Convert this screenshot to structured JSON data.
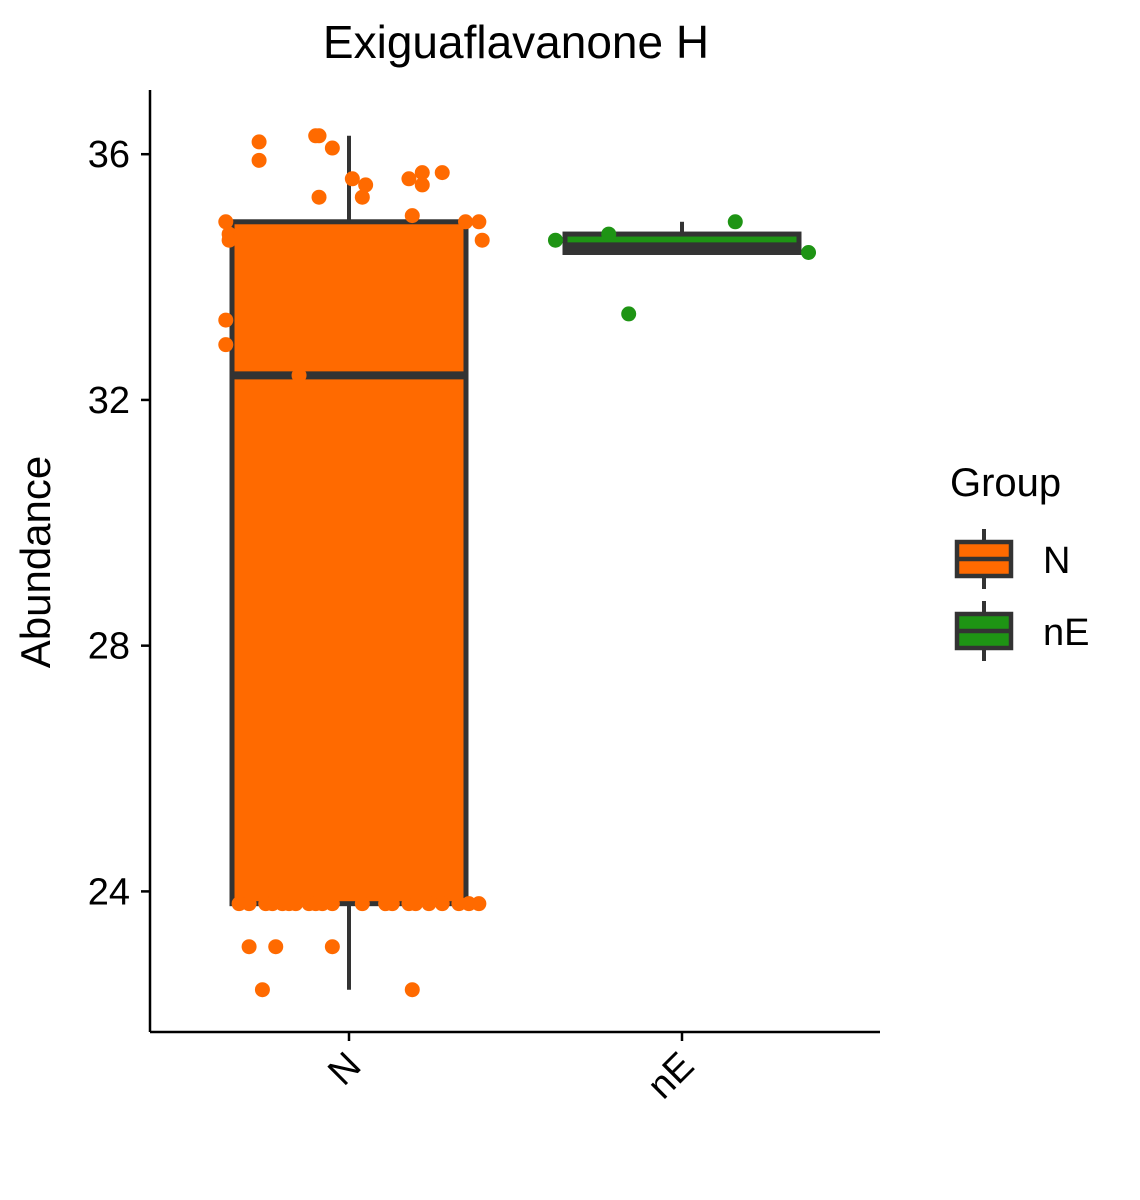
{
  "chart_data": {
    "type": "boxplot",
    "title": "Exiguaflavanone H",
    "xlabel": "",
    "ylabel": "Abundance",
    "ylim": [
      21.8,
      37.0
    ],
    "yticks": [
      24,
      28,
      32,
      36
    ],
    "grid": false,
    "legend": {
      "title": "Group",
      "placement": "right",
      "entries": [
        "N",
        "nE"
      ]
    },
    "categories": [
      "N",
      "nE"
    ],
    "colors": {
      "N": "#FF6A00",
      "nE": "#1E9414",
      "box_line": "#333333",
      "axis": "#000000"
    },
    "boxes": [
      {
        "category": "N",
        "whisker_low": 22.4,
        "q1": 23.8,
        "median": 32.4,
        "q3": 34.9,
        "whisker_high": 36.3
      },
      {
        "category": "nE",
        "whisker_low": 34.4,
        "q1": 34.4,
        "median": 34.5,
        "q3": 34.7,
        "whisker_high": 34.9
      }
    ],
    "points": [
      {
        "category": "N",
        "y": 36.2,
        "jitter": -0.27
      },
      {
        "category": "N",
        "y": 35.9,
        "jitter": -0.27
      },
      {
        "category": "N",
        "y": 36.3,
        "jitter": -0.1
      },
      {
        "category": "N",
        "y": 36.3,
        "jitter": -0.09
      },
      {
        "category": "N",
        "y": 36.1,
        "jitter": -0.05
      },
      {
        "category": "N",
        "y": 35.3,
        "jitter": -0.09
      },
      {
        "category": "N",
        "y": 35.6,
        "jitter": 0.01
      },
      {
        "category": "N",
        "y": 35.5,
        "jitter": 0.05
      },
      {
        "category": "N",
        "y": 35.3,
        "jitter": 0.04
      },
      {
        "category": "N",
        "y": 35.6,
        "jitter": 0.18
      },
      {
        "category": "N",
        "y": 35.7,
        "jitter": 0.22
      },
      {
        "category": "N",
        "y": 35.5,
        "jitter": 0.22
      },
      {
        "category": "N",
        "y": 35.7,
        "jitter": 0.28
      },
      {
        "category": "N",
        "y": 35.0,
        "jitter": 0.19
      },
      {
        "category": "N",
        "y": 34.9,
        "jitter": 0.35
      },
      {
        "category": "N",
        "y": 34.9,
        "jitter": 0.39
      },
      {
        "category": "N",
        "y": 34.6,
        "jitter": 0.4
      },
      {
        "category": "N",
        "y": 34.9,
        "jitter": -0.37
      },
      {
        "category": "N",
        "y": 34.7,
        "jitter": -0.36
      },
      {
        "category": "N",
        "y": 34.6,
        "jitter": -0.36
      },
      {
        "category": "N",
        "y": 33.3,
        "jitter": -0.37
      },
      {
        "category": "N",
        "y": 32.9,
        "jitter": -0.37
      },
      {
        "category": "N",
        "y": 32.4,
        "jitter": -0.15
      },
      {
        "category": "N",
        "y": 23.8,
        "jitter": -0.33
      },
      {
        "category": "N",
        "y": 23.8,
        "jitter": -0.3
      },
      {
        "category": "N",
        "y": 23.8,
        "jitter": -0.25
      },
      {
        "category": "N",
        "y": 23.8,
        "jitter": -0.23
      },
      {
        "category": "N",
        "y": 23.8,
        "jitter": -0.2
      },
      {
        "category": "N",
        "y": 23.8,
        "jitter": -0.18
      },
      {
        "category": "N",
        "y": 23.8,
        "jitter": -0.16
      },
      {
        "category": "N",
        "y": 23.8,
        "jitter": -0.12
      },
      {
        "category": "N",
        "y": 23.8,
        "jitter": -0.1
      },
      {
        "category": "N",
        "y": 23.8,
        "jitter": -0.08
      },
      {
        "category": "N",
        "y": 23.8,
        "jitter": -0.05
      },
      {
        "category": "N",
        "y": 23.8,
        "jitter": 0.04
      },
      {
        "category": "N",
        "y": 23.8,
        "jitter": 0.11
      },
      {
        "category": "N",
        "y": 23.8,
        "jitter": 0.13
      },
      {
        "category": "N",
        "y": 23.8,
        "jitter": 0.18
      },
      {
        "category": "N",
        "y": 23.8,
        "jitter": 0.2
      },
      {
        "category": "N",
        "y": 23.8,
        "jitter": 0.24
      },
      {
        "category": "N",
        "y": 23.8,
        "jitter": 0.28
      },
      {
        "category": "N",
        "y": 23.8,
        "jitter": 0.33
      },
      {
        "category": "N",
        "y": 23.8,
        "jitter": 0.36
      },
      {
        "category": "N",
        "y": 23.8,
        "jitter": 0.39
      },
      {
        "category": "N",
        "y": 23.1,
        "jitter": -0.3
      },
      {
        "category": "N",
        "y": 23.1,
        "jitter": -0.22
      },
      {
        "category": "N",
        "y": 23.1,
        "jitter": -0.05
      },
      {
        "category": "N",
        "y": 22.4,
        "jitter": -0.26
      },
      {
        "category": "N",
        "y": 22.4,
        "jitter": 0.19
      },
      {
        "category": "nE",
        "y": 34.6,
        "jitter": -0.38
      },
      {
        "category": "nE",
        "y": 34.7,
        "jitter": -0.22
      },
      {
        "category": "nE",
        "y": 34.9,
        "jitter": 0.16
      },
      {
        "category": "nE",
        "y": 34.4,
        "jitter": 0.38
      },
      {
        "category": "nE",
        "y": 33.4,
        "jitter": -0.16
      }
    ]
  }
}
